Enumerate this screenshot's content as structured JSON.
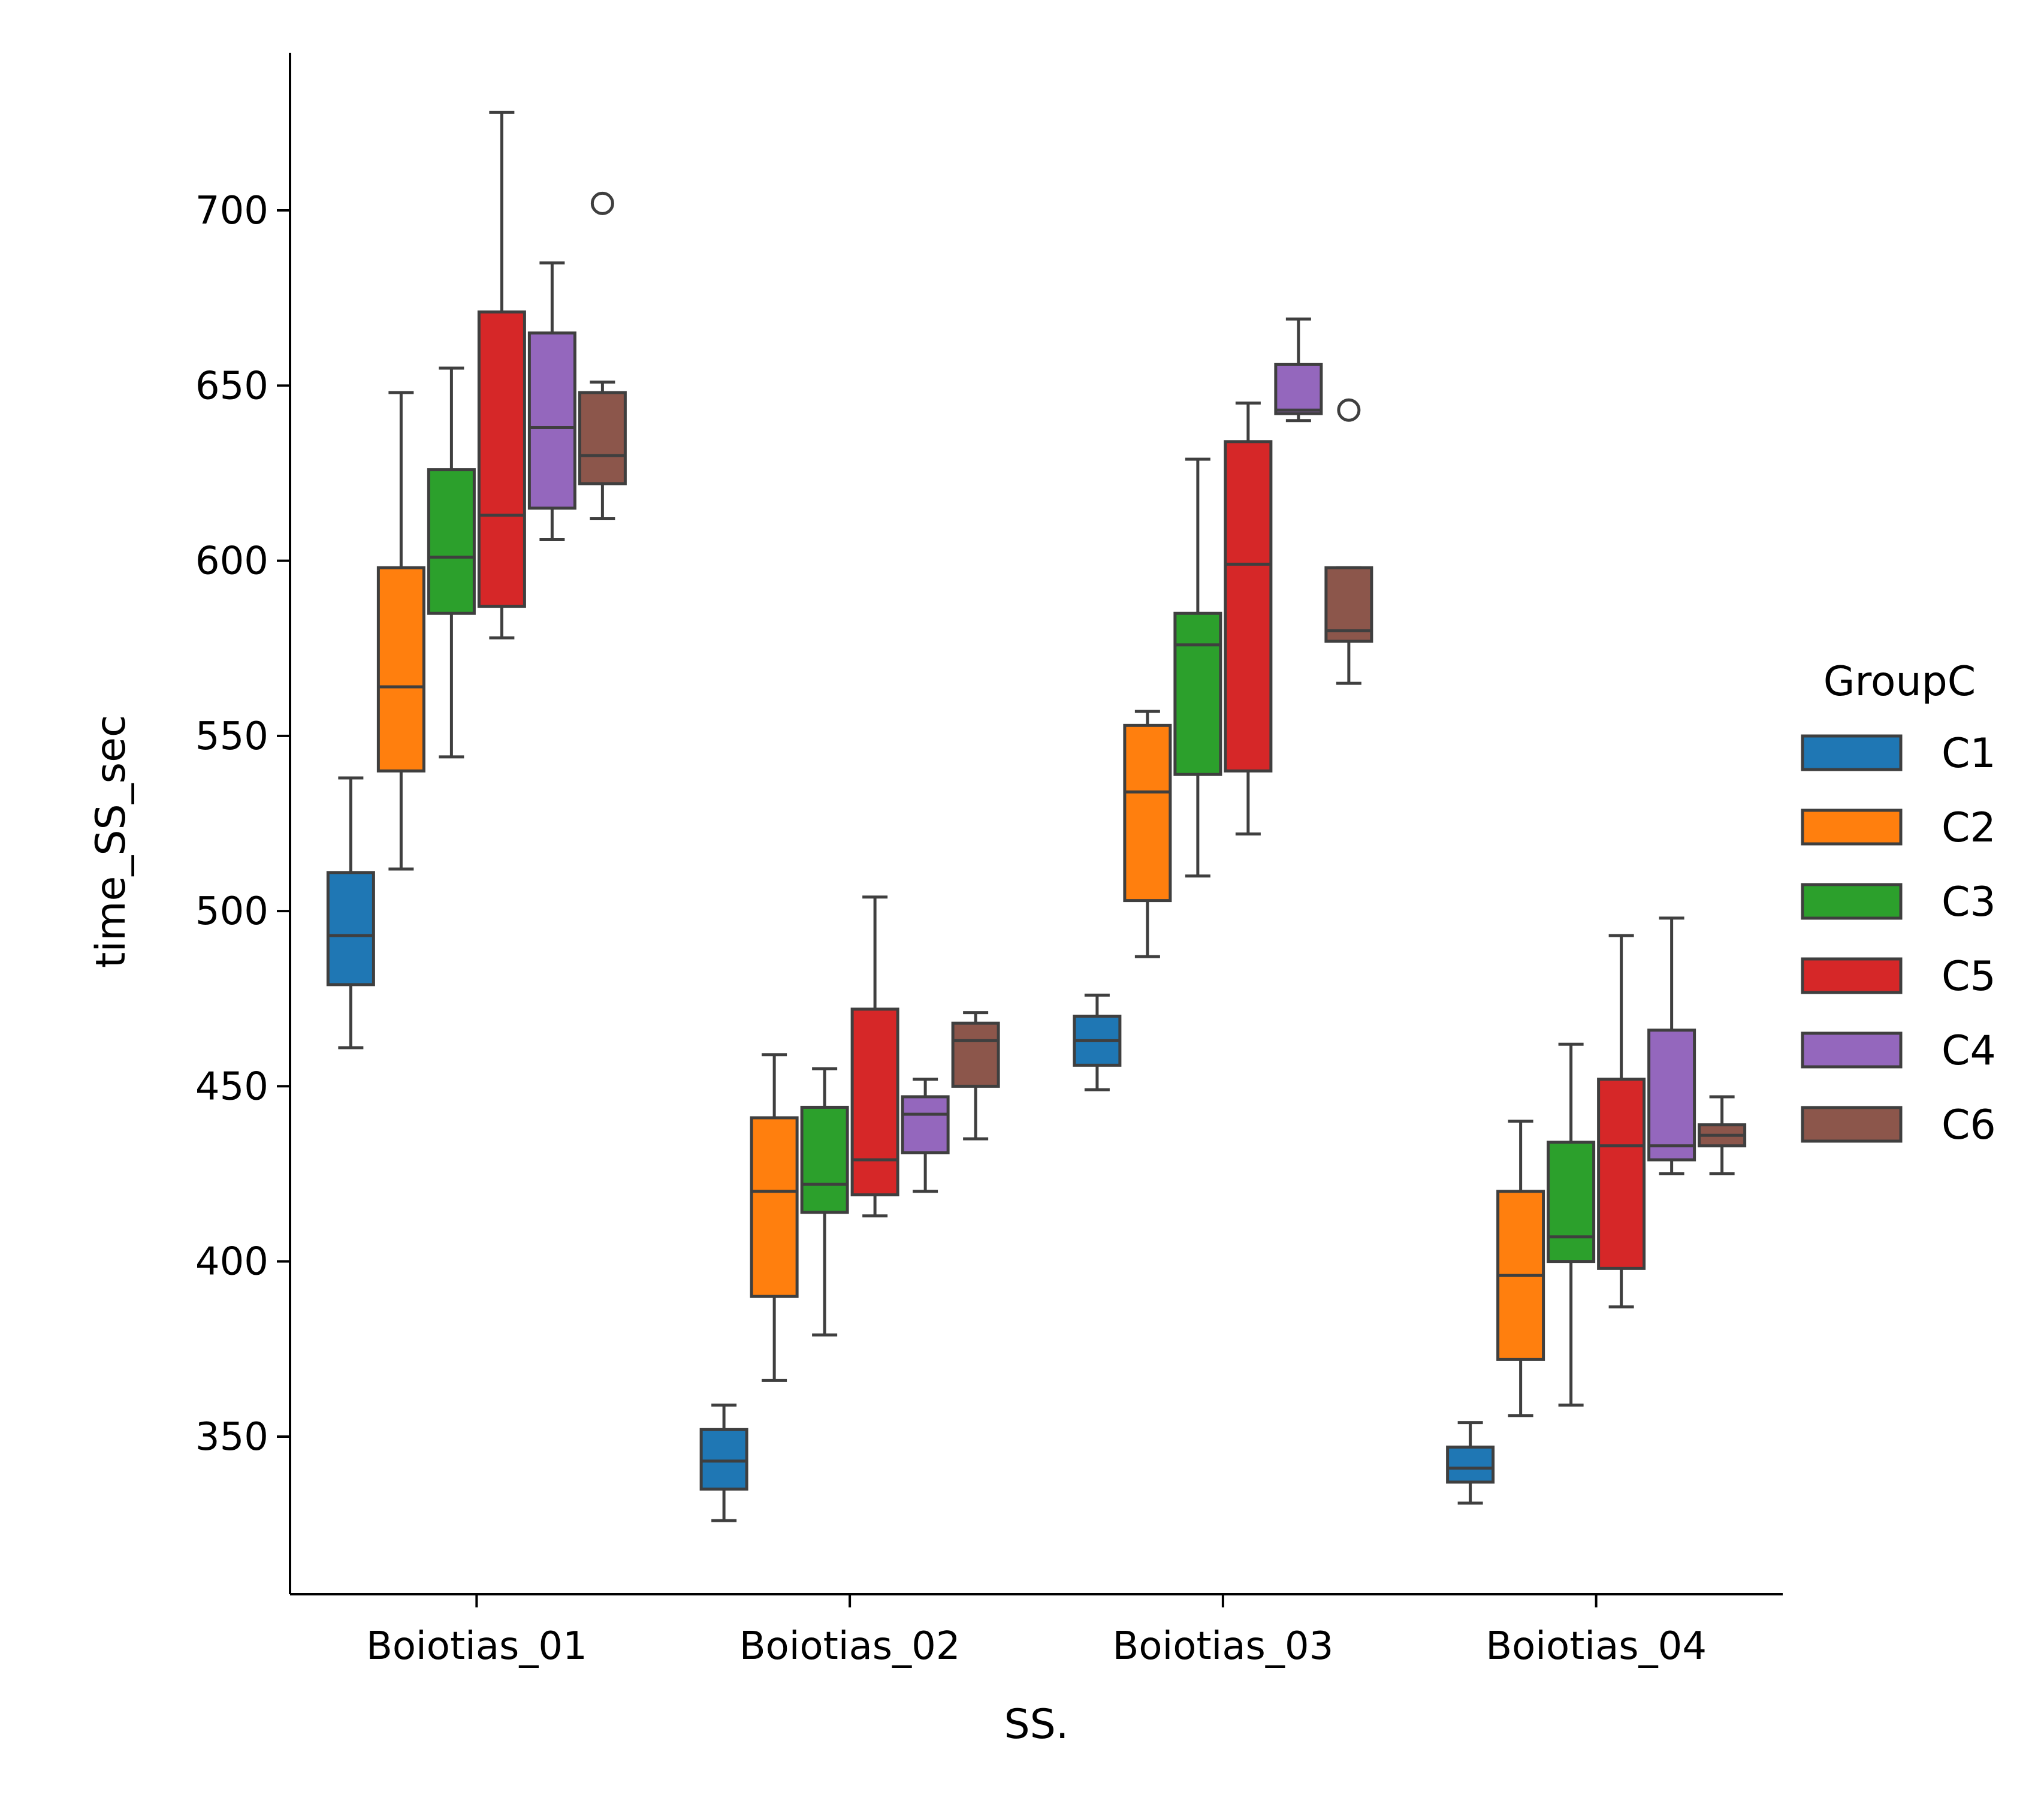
{
  "chart_data": {
    "type": "boxplot",
    "title": "",
    "xlabel": "SS.",
    "ylabel": "time_SS_sec",
    "ylim": [
      305,
      745
    ],
    "yticks": [
      350,
      400,
      450,
      500,
      550,
      600,
      650,
      700
    ],
    "categories": [
      "Boiotias_01",
      "Boiotias_02",
      "Boiotias_03",
      "Boiotias_04"
    ],
    "legend": {
      "title": "GroupC",
      "placement": "right"
    },
    "grid": false,
    "series": [
      {
        "name": "C1",
        "color": "#1f77b4",
        "boxes": [
          {
            "whislo": 461,
            "q1": 479,
            "med": 493,
            "q3": 511,
            "whishi": 538,
            "fliers": []
          },
          {
            "whislo": 326,
            "q1": 335,
            "med": 343,
            "q3": 352,
            "whishi": 359,
            "fliers": []
          },
          {
            "whislo": 449,
            "q1": 456,
            "med": 463,
            "q3": 470,
            "whishi": 476,
            "fliers": []
          },
          {
            "whislo": 331,
            "q1": 337,
            "med": 341,
            "q3": 347,
            "whishi": 354,
            "fliers": []
          }
        ]
      },
      {
        "name": "C2",
        "color": "#ff7f0e",
        "boxes": [
          {
            "whislo": 512,
            "q1": 540,
            "med": 564,
            "q3": 598,
            "whishi": 648,
            "fliers": []
          },
          {
            "whislo": 366,
            "q1": 390,
            "med": 420,
            "q3": 441,
            "whishi": 459,
            "fliers": []
          },
          {
            "whislo": 487,
            "q1": 503,
            "med": 534,
            "q3": 553,
            "whishi": 557,
            "fliers": []
          },
          {
            "whislo": 356,
            "q1": 372,
            "med": 396,
            "q3": 420,
            "whishi": 440,
            "fliers": []
          }
        ]
      },
      {
        "name": "C3",
        "color": "#2ca02c",
        "boxes": [
          {
            "whislo": 544,
            "q1": 585,
            "med": 601,
            "q3": 626,
            "whishi": 655,
            "fliers": []
          },
          {
            "whislo": 379,
            "q1": 414,
            "med": 422,
            "q3": 444,
            "whishi": 455,
            "fliers": []
          },
          {
            "whislo": 510,
            "q1": 539,
            "med": 576,
            "q3": 585,
            "whishi": 629,
            "fliers": []
          },
          {
            "whislo": 359,
            "q1": 400,
            "med": 407,
            "q3": 434,
            "whishi": 462,
            "fliers": []
          }
        ]
      },
      {
        "name": "C5",
        "color": "#d62728",
        "boxes": [
          {
            "whislo": 578,
            "q1": 587,
            "med": 613,
            "q3": 671,
            "whishi": 728,
            "fliers": []
          },
          {
            "whislo": 413,
            "q1": 419,
            "med": 429,
            "q3": 472,
            "whishi": 504,
            "fliers": []
          },
          {
            "whislo": 522,
            "q1": 540,
            "med": 599,
            "q3": 634,
            "whishi": 645,
            "fliers": []
          },
          {
            "whislo": 387,
            "q1": 398,
            "med": 433,
            "q3": 452,
            "whishi": 493,
            "fliers": []
          }
        ]
      },
      {
        "name": "C4",
        "color": "#9467bd",
        "boxes": [
          {
            "whislo": 606,
            "q1": 615,
            "med": 638,
            "q3": 665,
            "whishi": 685,
            "fliers": []
          },
          {
            "whislo": 420,
            "q1": 431,
            "med": 442,
            "q3": 447,
            "whishi": 452,
            "fliers": []
          },
          {
            "whislo": 640,
            "q1": 642,
            "med": 643,
            "q3": 656,
            "whishi": 669,
            "fliers": []
          },
          {
            "whislo": 425,
            "q1": 429,
            "med": 433,
            "q3": 466,
            "whishi": 498,
            "fliers": []
          }
        ]
      },
      {
        "name": "C6",
        "color": "#8c564b",
        "boxes": [
          {
            "whislo": 612,
            "q1": 622,
            "med": 630,
            "q3": 648,
            "whishi": 651,
            "fliers": [
              702
            ]
          },
          {
            "whislo": 435,
            "q1": 450,
            "med": 463,
            "q3": 468,
            "whishi": 471,
            "fliers": []
          },
          {
            "whislo": 565,
            "q1": 577,
            "med": 580,
            "q3": 598,
            "whishi": 598,
            "fliers": [
              643
            ]
          },
          {
            "whislo": 425,
            "q1": 433,
            "med": 436,
            "q3": 439,
            "whishi": 447,
            "fliers": []
          }
        ]
      }
    ]
  }
}
